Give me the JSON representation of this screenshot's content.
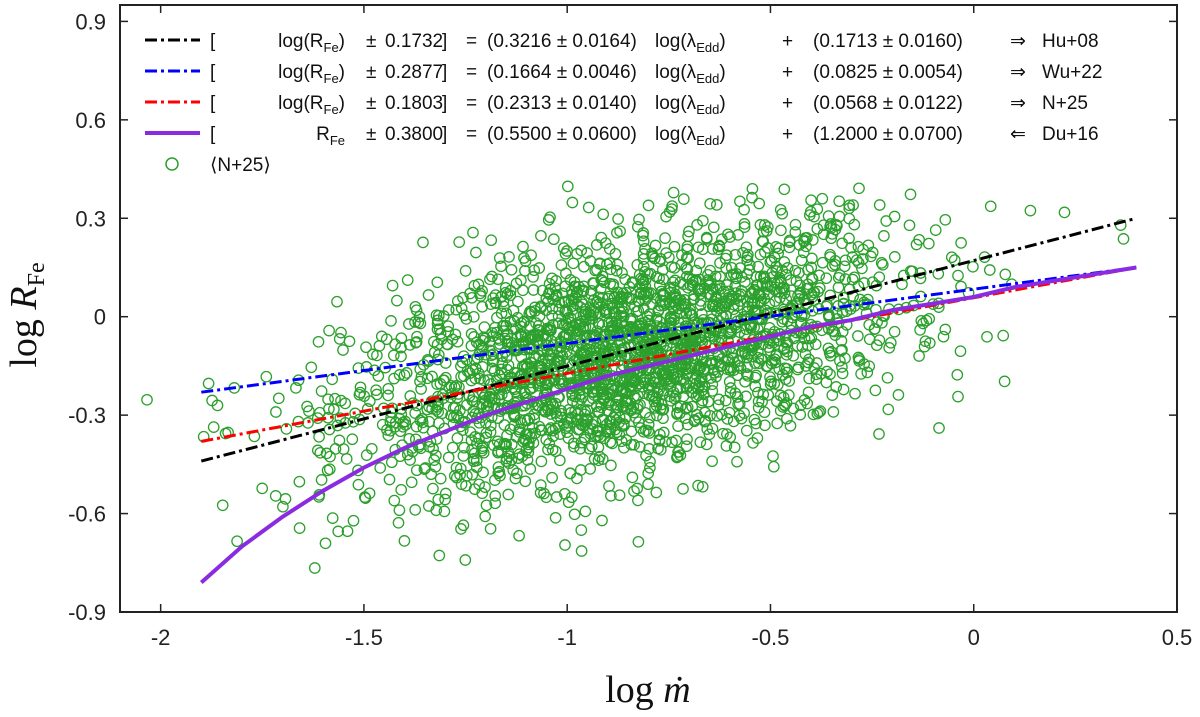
{
  "chart_data": {
    "type": "scatter",
    "xlabel": "log ṁ",
    "ylabel": "log R_Fe",
    "xlim": [
      -2.1,
      0.5
    ],
    "ylim": [
      -0.9,
      0.95
    ],
    "xticks": [
      "-2",
      "-1.5",
      "-1",
      "-0.5",
      "0",
      "0.5"
    ],
    "xtick_values": [
      -2,
      -1.5,
      -1,
      -0.5,
      0,
      0.5
    ],
    "yticks": [
      "0.9",
      "0.6",
      "0.3",
      "0",
      "-0.3",
      "-0.6",
      "-0.9"
    ],
    "ytick_values": [
      0.9,
      0.6,
      0.3,
      0,
      -0.3,
      -0.6,
      -0.9
    ],
    "grid": false,
    "legend_position": "top-left",
    "lines": [
      {
        "style": "dash-dot",
        "color": "#000000",
        "x": [
          -1.9,
          0.4
        ],
        "y": [
          -0.44,
          0.3
        ]
      },
      {
        "style": "dash-dot",
        "color": "#0000ff",
        "x": [
          -1.9,
          0.4
        ],
        "y": [
          -0.23,
          0.15
        ]
      },
      {
        "style": "dash-dot",
        "color": "#ff0000",
        "x": [
          -1.9,
          0.4
        ],
        "y": [
          -0.38,
          0.15
        ]
      },
      {
        "style": "solid",
        "color": "#8a2be2",
        "x": [
          -1.9,
          -1.8,
          -1.7,
          -1.6,
          -1.5,
          -1.4,
          -1.3,
          -1.2,
          -1.1,
          -1.0,
          -0.9,
          -0.8,
          -0.7,
          -0.6,
          -0.5,
          -0.4,
          -0.3,
          -0.2,
          -0.1,
          0.0,
          0.1,
          0.2,
          0.3,
          0.4
        ],
        "y": [
          -0.81,
          -0.7,
          -0.61,
          -0.53,
          -0.46,
          -0.4,
          -0.35,
          -0.3,
          -0.26,
          -0.22,
          -0.18,
          -0.15,
          -0.12,
          -0.09,
          -0.06,
          -0.03,
          -0.01,
          0.02,
          0.04,
          0.06,
          0.09,
          0.11,
          0.13,
          0.15
        ]
      }
    ],
    "legend": [
      {
        "prefix": "[",
        "lhs": "log(R",
        "lhs_sub": "Fe",
        "lhs_post": ")",
        "pm": "±",
        "sigma": "0.1732",
        "close": "]",
        "eq": "=",
        "slope": "(0.3216 ± 0.0164)",
        "lam": "log(λ",
        "lam_sub": "Edd",
        "lam_post": ")",
        "plus": "+",
        "intercept": "(0.1713 ± 0.0160)",
        "arrow": "⇒",
        "arrow_color": "#0000ff",
        "ref": "Hu+08",
        "color": "#000000",
        "style": "dash-dot"
      },
      {
        "prefix": "[",
        "lhs": "log(R",
        "lhs_sub": "Fe",
        "lhs_post": ")",
        "pm": "±",
        "sigma": "0.2877",
        "close": "]",
        "eq": "=",
        "slope": "(0.1664 ± 0.0046)",
        "lam": "log(λ",
        "lam_sub": "Edd",
        "lam_post": ")",
        "plus": "+",
        "intercept": "(0.0825 ± 0.0054)",
        "arrow": "⇒",
        "arrow_color": "#0000ff",
        "ref": "Wu+22",
        "color": "#0000ff",
        "style": "dash-dot"
      },
      {
        "prefix": "[",
        "lhs": "log(R",
        "lhs_sub": "Fe",
        "lhs_post": ")",
        "pm": "±",
        "sigma": "0.1803",
        "close": "]",
        "eq": "=",
        "slope": "(0.2313 ± 0.0140)",
        "lam": "log(λ",
        "lam_sub": "Edd",
        "lam_post": ")",
        "plus": "+",
        "intercept": "(0.0568 ± 0.0122)",
        "arrow": "⇒",
        "arrow_color": "#0000ff",
        "ref": "N+25",
        "color": "#ff0000",
        "style": "dash-dot"
      },
      {
        "prefix": "[",
        "lhs": "R",
        "lhs_sub": "Fe",
        "lhs_post": "",
        "pm": "±",
        "sigma": "0.3800",
        "close": "]",
        "eq": "=",
        "slope": "(0.5500 ± 0.0600)",
        "lam": "log(λ",
        "lam_sub": "Edd",
        "lam_post": ")",
        "plus": "+",
        "intercept": "(1.2000 ± 0.0700)",
        "arrow": "⇐",
        "arrow_color": "#ff0000",
        "ref": "Du+16",
        "color": "#8a2be2",
        "style": "solid"
      }
    ],
    "scatter_series": {
      "name": "⟨N+25⟩",
      "color": "#2ca02c",
      "n_points": 2600,
      "x_center": -0.85,
      "x_spread": 0.34,
      "y_at_x0": 0.12,
      "slope": 0.28,
      "y_spread": 0.17
    }
  }
}
